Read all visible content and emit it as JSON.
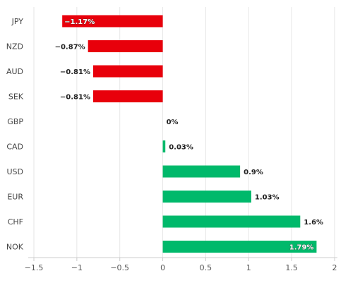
{
  "chart_data": {
    "type": "bar",
    "orientation": "horizontal",
    "title": "",
    "xlabel": "",
    "ylabel": "",
    "categories": [
      "JPY",
      "NZD",
      "AUD",
      "SEK",
      "GBP",
      "CAD",
      "USD",
      "EUR",
      "CHF",
      "NOK"
    ],
    "values": [
      -1.17,
      -0.87,
      -0.81,
      -0.81,
      0,
      0.03,
      0.9,
      1.03,
      1.6,
      1.79
    ],
    "value_labels": [
      "−1.17%",
      "−0.87%",
      "−0.81%",
      "−0.81%",
      "0%",
      "0.03%",
      "0.9%",
      "1.03%",
      "1.6%",
      "1.79%"
    ],
    "xlim": [
      -1.5,
      2
    ],
    "xticks": [
      -1.5,
      -1,
      -0.5,
      0,
      0.5,
      1,
      1.5,
      2
    ],
    "xtick_labels": [
      "−1.5",
      "−1",
      "−0.5",
      "0",
      "0.5",
      "1",
      "1.5",
      "2"
    ],
    "grid": true,
    "colors": {
      "negative": "#e8000b",
      "positive": "#00b96b"
    }
  }
}
